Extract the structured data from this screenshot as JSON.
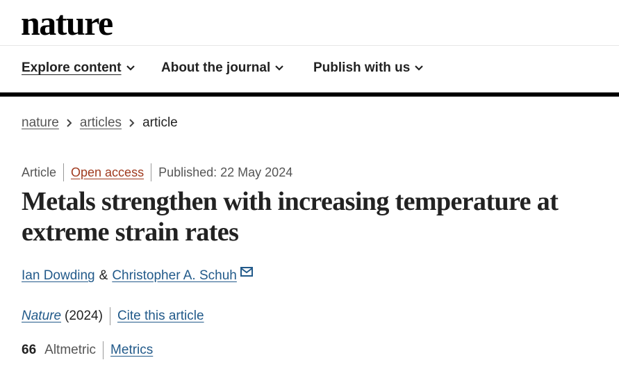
{
  "header": {
    "logo": "nature"
  },
  "nav": [
    "Explore content",
    "About the journal",
    "Publish with us"
  ],
  "breadcrumb": [
    "nature",
    "articles",
    "article"
  ],
  "meta": {
    "type": "Article",
    "access": "Open access",
    "published": "Published: 22 May 2024"
  },
  "title": "Metals strengthen with increasing temperature at extreme strain rates",
  "authors": {
    "names": [
      "Ian Dowding",
      "Christopher A. Schuh"
    ],
    "separator": "&"
  },
  "citation": {
    "journal": "Nature",
    "year": "(2024)",
    "cite": "Cite this article"
  },
  "metrics": {
    "score": 66,
    "label": "Altmetric",
    "link": "Metrics"
  }
}
